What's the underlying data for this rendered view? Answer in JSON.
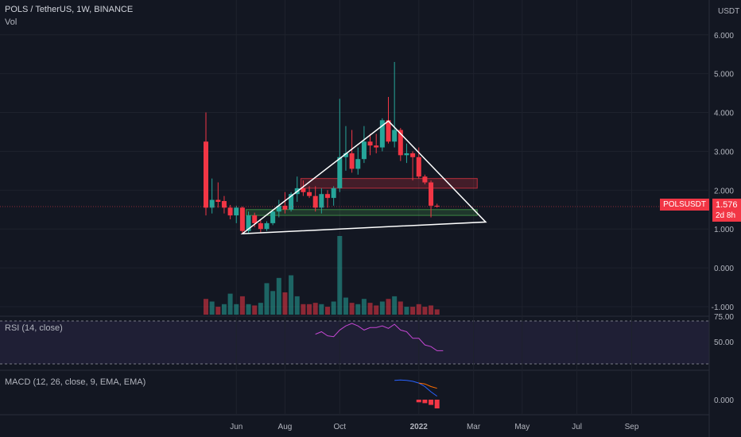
{
  "header": {
    "title": "POLS / TetherUS, 1W, BINANCE",
    "volume_label": "Vol",
    "rsi_label": "RSI (14, close)",
    "macd_label": "MACD (12, 26, close, 9, EMA, EMA)",
    "currency": "USDT"
  },
  "price_marker": {
    "symbol": "POLSUSDT",
    "price": "1.576",
    "countdown": "2d 8h",
    "value": 1.576
  },
  "colors": {
    "background": "#131722",
    "up": "#26a69a",
    "down": "#f23645",
    "rsi": "#c447d2",
    "macd": "#2962ff",
    "signal": "#ff6d00",
    "zone_red": "#f23645",
    "zone_green": "#4caf50",
    "trend": "#ffffff",
    "grid": "#1e222d",
    "text": "#b2b5be"
  },
  "chart_data": {
    "type": "candlestick",
    "price_axis": {
      "ticks": [
        "6.000",
        "5.000",
        "4.000",
        "3.000",
        "2.000",
        "1.000",
        "0.000",
        "-1.000"
      ],
      "tick_values": [
        6,
        5,
        4,
        3,
        2,
        1,
        0,
        -1
      ],
      "range": [
        -1.0,
        6.2
      ]
    },
    "time_axis": {
      "labels": [
        "Jun",
        "Aug",
        "Oct",
        "2022",
        "Mar",
        "May",
        "Jul",
        "Sep"
      ],
      "label_weeks": [
        5,
        13,
        22,
        35,
        44,
        52,
        61,
        70
      ]
    },
    "candles": [
      {
        "o": 3.25,
        "h": 4.0,
        "l": 1.35,
        "c": 1.55
      },
      {
        "o": 1.55,
        "h": 2.3,
        "l": 1.4,
        "c": 1.75
      },
      {
        "o": 1.75,
        "h": 2.2,
        "l": 1.55,
        "c": 1.7
      },
      {
        "o": 1.72,
        "h": 1.85,
        "l": 1.4,
        "c": 1.55
      },
      {
        "o": 1.55,
        "h": 1.62,
        "l": 1.25,
        "c": 1.35
      },
      {
        "o": 1.35,
        "h": 1.6,
        "l": 1.15,
        "c": 1.55
      },
      {
        "o": 1.55,
        "h": 1.58,
        "l": 0.9,
        "c": 0.95
      },
      {
        "o": 0.95,
        "h": 1.45,
        "l": 0.9,
        "c": 1.35
      },
      {
        "o": 1.35,
        "h": 1.42,
        "l": 1.05,
        "c": 1.15
      },
      {
        "o": 1.15,
        "h": 1.22,
        "l": 0.9,
        "c": 1.0
      },
      {
        "o": 1.0,
        "h": 1.2,
        "l": 0.95,
        "c": 1.15
      },
      {
        "o": 1.15,
        "h": 1.5,
        "l": 1.1,
        "c": 1.45
      },
      {
        "o": 1.45,
        "h": 1.75,
        "l": 1.3,
        "c": 1.6
      },
      {
        "o": 1.6,
        "h": 1.95,
        "l": 1.4,
        "c": 1.5
      },
      {
        "o": 1.5,
        "h": 1.95,
        "l": 1.45,
        "c": 1.9
      },
      {
        "o": 1.9,
        "h": 2.35,
        "l": 1.7,
        "c": 2.05
      },
      {
        "o": 2.05,
        "h": 2.25,
        "l": 1.85,
        "c": 1.95
      },
      {
        "o": 1.95,
        "h": 2.1,
        "l": 1.8,
        "c": 1.85
      },
      {
        "o": 1.85,
        "h": 2.1,
        "l": 1.45,
        "c": 1.55
      },
      {
        "o": 1.55,
        "h": 2.05,
        "l": 1.4,
        "c": 1.9
      },
      {
        "o": 1.9,
        "h": 2.0,
        "l": 1.55,
        "c": 1.8
      },
      {
        "o": 1.8,
        "h": 2.1,
        "l": 1.6,
        "c": 2.05
      },
      {
        "o": 2.05,
        "h": 4.35,
        "l": 1.95,
        "c": 2.85
      },
      {
        "o": 2.85,
        "h": 3.65,
        "l": 2.5,
        "c": 2.95
      },
      {
        "o": 2.95,
        "h": 3.55,
        "l": 2.45,
        "c": 2.55
      },
      {
        "o": 2.55,
        "h": 3.1,
        "l": 2.4,
        "c": 2.8
      },
      {
        "o": 2.8,
        "h": 3.65,
        "l": 2.7,
        "c": 3.25
      },
      {
        "o": 3.25,
        "h": 3.45,
        "l": 2.9,
        "c": 3.15
      },
      {
        "o": 3.15,
        "h": 3.45,
        "l": 2.95,
        "c": 3.1
      },
      {
        "o": 3.1,
        "h": 3.85,
        "l": 3.0,
        "c": 3.8
      },
      {
        "o": 3.8,
        "h": 4.4,
        "l": 3.2,
        "c": 3.25
      },
      {
        "o": 3.25,
        "h": 5.3,
        "l": 3.1,
        "c": 3.55
      },
      {
        "o": 3.55,
        "h": 3.6,
        "l": 2.75,
        "c": 2.9
      },
      {
        "o": 2.9,
        "h": 3.2,
        "l": 2.7,
        "c": 2.95
      },
      {
        "o": 2.95,
        "h": 3.0,
        "l": 2.25,
        "c": 2.85
      },
      {
        "o": 2.85,
        "h": 3.1,
        "l": 2.3,
        "c": 2.35
      },
      {
        "o": 2.35,
        "h": 2.4,
        "l": 2.15,
        "c": 2.2
      },
      {
        "o": 2.2,
        "h": 2.25,
        "l": 1.3,
        "c": 1.6
      },
      {
        "o": 1.6,
        "h": 1.65,
        "l": 1.55,
        "c": 1.576
      }
    ],
    "volumes": [
      {
        "v": 12,
        "up": false
      },
      {
        "v": 10,
        "up": true
      },
      {
        "v": 6,
        "up": false
      },
      {
        "v": 8,
        "up": true
      },
      {
        "v": 16,
        "up": true
      },
      {
        "v": 8,
        "up": true
      },
      {
        "v": 14,
        "up": false
      },
      {
        "v": 8,
        "up": true
      },
      {
        "v": 7,
        "up": false
      },
      {
        "v": 9,
        "up": true
      },
      {
        "v": 24,
        "up": true
      },
      {
        "v": 18,
        "up": true
      },
      {
        "v": 28,
        "up": true
      },
      {
        "v": 17,
        "up": false
      },
      {
        "v": 30,
        "up": true
      },
      {
        "v": 14,
        "up": true
      },
      {
        "v": 8,
        "up": false
      },
      {
        "v": 8,
        "up": false
      },
      {
        "v": 9,
        "up": false
      },
      {
        "v": 8,
        "up": true
      },
      {
        "v": 6,
        "up": false
      },
      {
        "v": 10,
        "up": true
      },
      {
        "v": 60,
        "up": true
      },
      {
        "v": 13,
        "up": true
      },
      {
        "v": 9,
        "up": false
      },
      {
        "v": 8,
        "up": true
      },
      {
        "v": 12,
        "up": true
      },
      {
        "v": 9,
        "up": false
      },
      {
        "v": 7,
        "up": false
      },
      {
        "v": 10,
        "up": true
      },
      {
        "v": 12,
        "up": false
      },
      {
        "v": 14,
        "up": true
      },
      {
        "v": 10,
        "up": false
      },
      {
        "v": 6,
        "up": true
      },
      {
        "v": 6,
        "up": false
      },
      {
        "v": 8,
        "up": false
      },
      {
        "v": 6,
        "up": false
      },
      {
        "v": 7,
        "up": false
      },
      {
        "v": 4,
        "up": false
      }
    ],
    "rsi": {
      "ticks": [
        "75.00",
        "50.00"
      ],
      "tick_values": [
        75,
        50
      ],
      "start_week": 18,
      "values": [
        60,
        63,
        58,
        57,
        65,
        70,
        73,
        70,
        65,
        68,
        68,
        70,
        67,
        72,
        65,
        63,
        55,
        55,
        47,
        45,
        40,
        40
      ]
    },
    "macd": {
      "ticks": [
        "0.000"
      ],
      "tick_values": [
        0
      ],
      "start_week": 31,
      "macd_values": [
        0.44,
        0.45,
        0.44,
        0.42,
        0.38,
        0.3,
        0.18,
        0.08
      ],
      "signal_start_week": 35,
      "signal_values": [
        0.38,
        0.36,
        0.3,
        0.26
      ],
      "hist_start_week": 35,
      "hist_values": [
        -0.06,
        -0.08,
        -0.12,
        -0.2
      ]
    },
    "zones": [
      {
        "name": "resistance",
        "from_week": 16,
        "to_week": 45,
        "low": 2.05,
        "high": 2.3
      },
      {
        "name": "support",
        "from_week": 7,
        "to_week": 45,
        "low": 1.35,
        "high": 1.5
      }
    ],
    "triangle": [
      {
        "week": 6,
        "price": 0.88
      },
      {
        "week": 30,
        "price": 3.78
      },
      {
        "week": 46,
        "price": 1.18
      }
    ]
  }
}
